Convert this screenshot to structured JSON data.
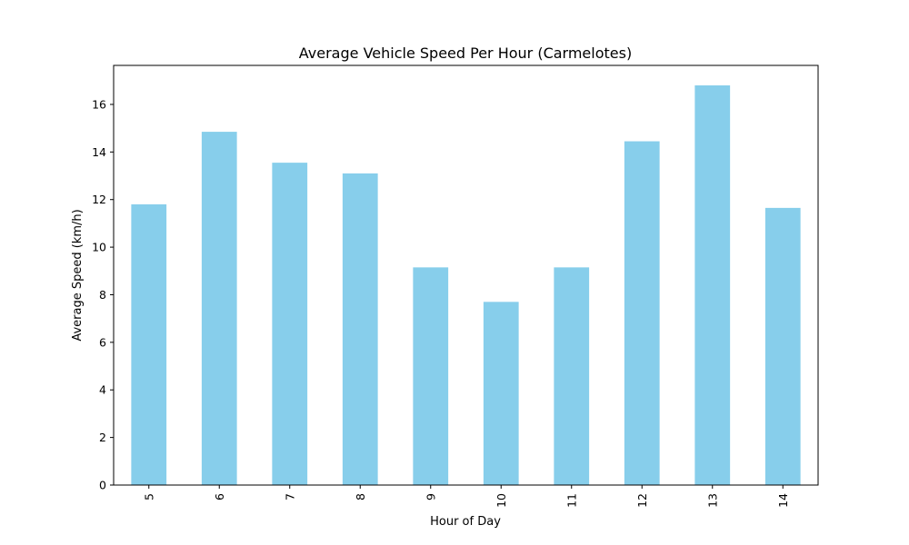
{
  "chart_data": {
    "type": "bar",
    "title": "Average Vehicle Speed Per Hour (Carmelotes)",
    "xlabel": "Hour of Day",
    "ylabel": "Average Speed (km/h)",
    "categories": [
      "5",
      "6",
      "7",
      "8",
      "9",
      "10",
      "11",
      "12",
      "13",
      "14"
    ],
    "values": [
      11.8,
      14.85,
      13.55,
      13.1,
      9.15,
      7.7,
      9.15,
      14.45,
      16.8,
      11.65
    ],
    "ylim": [
      0,
      17.64
    ],
    "yticks": [
      0,
      2,
      4,
      6,
      8,
      10,
      12,
      14,
      16
    ],
    "ytick_labels": [
      "0",
      "2",
      "4",
      "6",
      "8",
      "10",
      "12",
      "14",
      "16"
    ],
    "bar_color": "#87ceeb",
    "grid": false,
    "legend": false
  }
}
